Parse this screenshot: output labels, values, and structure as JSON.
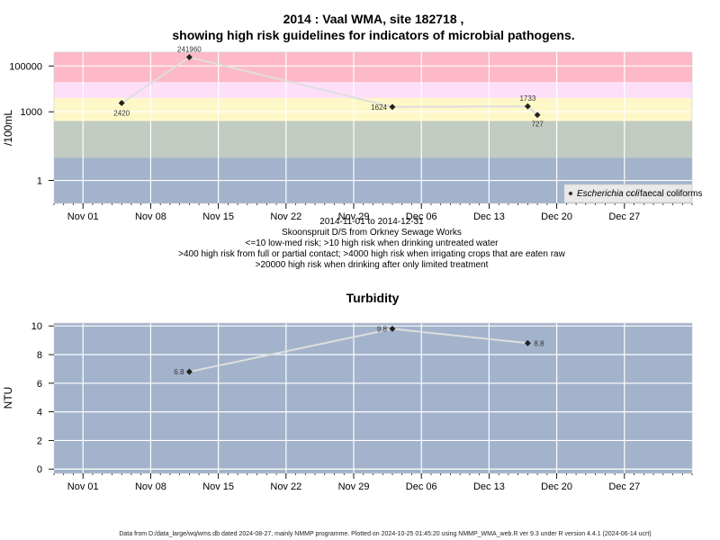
{
  "chart_data": [
    {
      "type": "line",
      "title": "2014 : Vaal WMA, site 182718 ,",
      "subtitle": "showing high risk guidelines for indicators of microbial pathogens.",
      "ylabel": "/100mL",
      "y_scale": "log",
      "ylim": [
        0.1,
        400000
      ],
      "y_ticks": [
        {
          "value": 1,
          "label": "1"
        },
        {
          "value": 1000,
          "label": "1000"
        },
        {
          "value": 100000,
          "label": "100000"
        }
      ],
      "x_ticks": [
        "Nov 01",
        "Nov 08",
        "Nov 15",
        "Nov 22",
        "Nov 29",
        "Dec 06",
        "Dec 13",
        "Dec 20",
        "Dec 27"
      ],
      "x_tick_dates": [
        "2014-11-01",
        "2014-11-08",
        "2014-11-15",
        "2014-11-22",
        "2014-11-29",
        "2014-12-06",
        "2014-12-13",
        "2014-12-20",
        "2014-12-27"
      ],
      "x_range": [
        "2014-10-29",
        "2015-01-03"
      ],
      "risk_bands": [
        {
          "from": 0.1,
          "to": 10,
          "color": "#a2b3cb"
        },
        {
          "from": 10,
          "to": 400,
          "color": "#c1cbc1"
        },
        {
          "from": 400,
          "to": 4000,
          "color": "#fef7c7"
        },
        {
          "from": 4000,
          "to": 20000,
          "color": "#fddff8"
        },
        {
          "from": 20000,
          "to": 400000,
          "color": "#fdb9c7"
        }
      ],
      "series": [
        {
          "name": "Escherichia coli",
          "marker": "filled-diamond",
          "color": "#222222",
          "points": [
            {
              "x": "2014-11-05",
              "y": 2420,
              "label": "2420"
            },
            {
              "x": "2014-11-12",
              "y": 241960,
              "label": "241960"
            },
            {
              "x": "2014-12-03",
              "y": 1624,
              "label": "1624"
            },
            {
              "x": "2014-12-17",
              "y": 1733,
              "label": "1733"
            },
            {
              "x": "2014-12-18",
              "y": 727,
              "label": "727"
            }
          ]
        }
      ],
      "legend": {
        "position": "bottom-right",
        "entries": [
          {
            "name": "Escherichia coli",
            "marker": "filled-diamond"
          },
          {
            "name": "faecal coliforms",
            "marker": "open-diamond"
          }
        ]
      },
      "caption_lines": [
        "2014-11-01 to 2014-12-31",
        "Skoonspruit D/S from Orkney Sewage Works",
        "<=10 low-med risk; >10 high risk when drinking untreated water",
        ">400 high risk from full or partial contact; >4000 high risk when irrigating crops that are eaten raw",
        ">20000 high risk when drinking after only limited treatment"
      ]
    },
    {
      "type": "line",
      "title": "Turbidity",
      "ylabel": "NTU",
      "ylim": [
        -0.3,
        10.2
      ],
      "y_ticks": [
        {
          "value": 0,
          "label": "0"
        },
        {
          "value": 2,
          "label": "2"
        },
        {
          "value": 4,
          "label": "4"
        },
        {
          "value": 6,
          "label": "6"
        },
        {
          "value": 8,
          "label": "8"
        },
        {
          "value": 10,
          "label": "10"
        }
      ],
      "x_ticks": [
        "Nov 01",
        "Nov 08",
        "Nov 15",
        "Nov 22",
        "Nov 29",
        "Dec 06",
        "Dec 13",
        "Dec 20",
        "Dec 27"
      ],
      "x_tick_dates": [
        "2014-11-01",
        "2014-11-08",
        "2014-11-15",
        "2014-11-22",
        "2014-11-29",
        "2014-12-06",
        "2014-12-13",
        "2014-12-20",
        "2014-12-27"
      ],
      "x_range": [
        "2014-10-29",
        "2015-01-03"
      ],
      "background": "#a2b3cb",
      "series": [
        {
          "name": "",
          "marker": "filled-diamond",
          "color": "#222222",
          "points": [
            {
              "x": "2014-11-12",
              "y": 6.8,
              "label": "6.8"
            },
            {
              "x": "2014-12-03",
              "y": 9.8,
              "label": "9.8"
            },
            {
              "x": "2014-12-17",
              "y": 8.8,
              "label": "8.8"
            }
          ]
        }
      ]
    }
  ],
  "footer": "Data from D:/data_large/wq/wms.db dated 2024-08-27, mainly NMMP programme. Plotted on 2024-10-25 01:45:20 using NMMP_WMA_web.R ver 9.3 under R version 4.4.1 (2024-06-14 ucrt)"
}
